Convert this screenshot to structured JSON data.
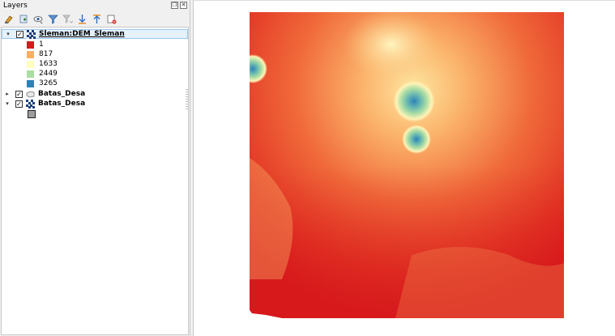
{
  "panel": {
    "title": "Layers",
    "controls": [
      "restore-icon",
      "close-icon"
    ]
  },
  "toolbar": {
    "icons": [
      "style-paint-icon",
      "add-group-icon",
      "manage-map-themes-icon",
      "filter-legend-icon",
      "filter-expression-icon",
      "expand-all-icon",
      "collapse-all-icon",
      "remove-layer-icon"
    ]
  },
  "layers": [
    {
      "name": "Sleman:DEM_Sleman",
      "checked": true,
      "expanded": true,
      "legend": [
        {
          "label": "1",
          "color": "#d7191c"
        },
        {
          "label": "817",
          "color": "#fdae61"
        },
        {
          "label": "1633",
          "color": "#ffffbf"
        },
        {
          "label": "2449",
          "color": "#abdda4"
        },
        {
          "label": "3265",
          "color": "#2b83ba"
        }
      ]
    },
    {
      "name": "Batas_Desa",
      "checked": true,
      "expanded": false
    },
    {
      "name": "Batas_Desa",
      "checked": true,
      "expanded": true,
      "symbol_color": "#9d9d9d"
    }
  ],
  "map": {
    "ramp": [
      "#d7191c",
      "#fdae61",
      "#ffffbf",
      "#abdda4",
      "#2b83ba"
    ]
  }
}
